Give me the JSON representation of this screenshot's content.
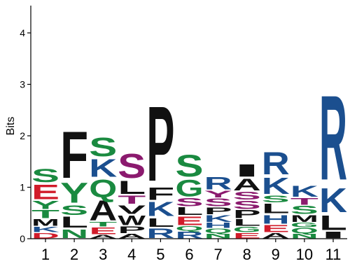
{
  "chart_data": {
    "type": "sequence_logo",
    "ylabel": "Bits",
    "ylim": [
      0,
      4.5
    ],
    "yticks": [
      0,
      1,
      2,
      3,
      4
    ],
    "positions": [
      "1",
      "2",
      "3",
      "4",
      "5",
      "6",
      "7",
      "8",
      "9",
      "10",
      "11"
    ],
    "colors": {
      "polar": "#1a8a40",
      "basic": "#1b4f8f",
      "acidic": "#d11b2a",
      "hydrophobic": "#111111",
      "neutral": "#8b1a6e"
    },
    "stacks": [
      [
        {
          "letter": "D",
          "bits": 0.12,
          "color": "#d11b2a"
        },
        {
          "letter": "K",
          "bits": 0.12,
          "color": "#1b4f8f"
        },
        {
          "letter": "M",
          "bits": 0.15,
          "color": "#111111"
        },
        {
          "letter": "T",
          "bits": 0.18,
          "color": "#1a8a40"
        },
        {
          "letter": "Y",
          "bits": 0.18,
          "color": "#1a8a40"
        },
        {
          "letter": "E",
          "bits": 0.33,
          "color": "#d11b2a"
        },
        {
          "letter": "S",
          "bits": 0.3,
          "color": "#1a8a40"
        }
      ],
      [
        {
          "letter": "N",
          "bits": 0.2,
          "color": "#1a8a40"
        },
        {
          "letter": "L",
          "bits": 0.25,
          "color": "#111111"
        },
        {
          "letter": "S",
          "bits": 0.22,
          "color": "#1a8a40"
        },
        {
          "letter": "Y",
          "bits": 0.45,
          "color": "#1a8a40"
        },
        {
          "letter": "F",
          "bits": 1.05,
          "color": "#111111"
        }
      ],
      [
        {
          "letter": "A",
          "bits": 0.08,
          "color": "#111111"
        },
        {
          "letter": "E",
          "bits": 0.15,
          "color": "#d11b2a"
        },
        {
          "letter": "T",
          "bits": 0.1,
          "color": "#1a8a40"
        },
        {
          "letter": "A",
          "bits": 0.45,
          "color": "#111111"
        },
        {
          "letter": "Q",
          "bits": 0.4,
          "color": "#1a8a40"
        },
        {
          "letter": "K",
          "bits": 0.4,
          "color": "#1b4f8f"
        },
        {
          "letter": "S",
          "bits": 0.42,
          "color": "#1a8a40"
        }
      ],
      [
        {
          "letter": "A",
          "bits": 0.1,
          "color": "#111111"
        },
        {
          "letter": "P",
          "bits": 0.15,
          "color": "#111111"
        },
        {
          "letter": "W",
          "bits": 0.22,
          "color": "#111111"
        },
        {
          "letter": "V",
          "bits": 0.2,
          "color": "#111111"
        },
        {
          "letter": "T",
          "bits": 0.18,
          "color": "#8b1a6e"
        },
        {
          "letter": "L",
          "bits": 0.3,
          "color": "#111111"
        },
        {
          "letter": "S",
          "bits": 0.55,
          "color": "#8b1a6e"
        }
      ],
      [
        {
          "letter": "R",
          "bits": 0.22,
          "color": "#1b4f8f"
        },
        {
          "letter": "L",
          "bits": 0.2,
          "color": "#111111"
        },
        {
          "letter": "K",
          "bits": 0.32,
          "color": "#1b4f8f"
        },
        {
          "letter": "F",
          "bits": 0.28,
          "color": "#111111"
        },
        {
          "letter": "P",
          "bits": 1.7,
          "color": "#111111"
        }
      ],
      [
        {
          "letter": "R",
          "bits": 0.15,
          "color": "#1b4f8f"
        },
        {
          "letter": "Q",
          "bits": 0.1,
          "color": "#1a8a40"
        },
        {
          "letter": "E",
          "bits": 0.2,
          "color": "#d11b2a"
        },
        {
          "letter": "L",
          "bits": 0.17,
          "color": "#111111"
        },
        {
          "letter": "S",
          "bits": 0.18,
          "color": "#8b1a6e"
        },
        {
          "letter": "G",
          "bits": 0.38,
          "color": "#1a8a40"
        },
        {
          "letter": "S",
          "bits": 0.5,
          "color": "#1a8a40"
        }
      ],
      [
        {
          "letter": "N",
          "bits": 0.1,
          "color": "#1a8a40"
        },
        {
          "letter": "Q",
          "bits": 0.1,
          "color": "#1a8a40"
        },
        {
          "letter": "H",
          "bits": 0.12,
          "color": "#1b4f8f"
        },
        {
          "letter": "K",
          "bits": 0.15,
          "color": "#1b4f8f"
        },
        {
          "letter": "P",
          "bits": 0.15,
          "color": "#111111"
        },
        {
          "letter": "S",
          "bits": 0.17,
          "color": "#8b1a6e"
        },
        {
          "letter": "Y",
          "bits": 0.15,
          "color": "#8b1a6e"
        },
        {
          "letter": "R",
          "bits": 0.28,
          "color": "#1b4f8f"
        }
      ],
      [
        {
          "letter": "E",
          "bits": 0.12,
          "color": "#d11b2a"
        },
        {
          "letter": "G",
          "bits": 0.12,
          "color": "#1a8a40"
        },
        {
          "letter": "L",
          "bits": 0.15,
          "color": "#111111"
        },
        {
          "letter": "P",
          "bits": 0.18,
          "color": "#111111"
        },
        {
          "letter": "S",
          "bits": 0.18,
          "color": "#8b1a6e"
        },
        {
          "letter": "S",
          "bits": 0.17,
          "color": "#8b1a6e"
        },
        {
          "letter": "A",
          "bits": 0.27,
          "color": "#111111"
        },
        {
          "letter": "I",
          "bits": 0.28,
          "color": "#111111"
        }
      ],
      [
        {
          "letter": "A",
          "bits": 0.12,
          "color": "#111111"
        },
        {
          "letter": "E",
          "bits": 0.16,
          "color": "#d11b2a"
        },
        {
          "letter": "H",
          "bits": 0.2,
          "color": "#1b4f8f"
        },
        {
          "letter": "L",
          "bits": 0.22,
          "color": "#111111"
        },
        {
          "letter": "S",
          "bits": 0.15,
          "color": "#1a8a40"
        },
        {
          "letter": "K",
          "bits": 0.37,
          "color": "#1b4f8f"
        },
        {
          "letter": "R",
          "bits": 0.5,
          "color": "#1b4f8f"
        }
      ],
      [
        {
          "letter": "N",
          "bits": 0.1,
          "color": "#1a8a40"
        },
        {
          "letter": "Q",
          "bits": 0.12,
          "color": "#1a8a40"
        },
        {
          "letter": "G",
          "bits": 0.1,
          "color": "#1a8a40"
        },
        {
          "letter": "M",
          "bits": 0.15,
          "color": "#111111"
        },
        {
          "letter": "S",
          "bits": 0.18,
          "color": "#1a8a40"
        },
        {
          "letter": "T",
          "bits": 0.15,
          "color": "#8b1a6e"
        },
        {
          "letter": "K",
          "bits": 0.25,
          "color": "#1b4f8f"
        }
      ],
      [
        {
          "letter": "I",
          "bits": 0.15,
          "color": "#111111"
        },
        {
          "letter": "L",
          "bits": 0.33,
          "color": "#111111"
        },
        {
          "letter": "K",
          "bits": 0.55,
          "color": "#1b4f8f"
        },
        {
          "letter": "R",
          "bits": 1.92,
          "color": "#1b4f8f"
        }
      ]
    ]
  }
}
